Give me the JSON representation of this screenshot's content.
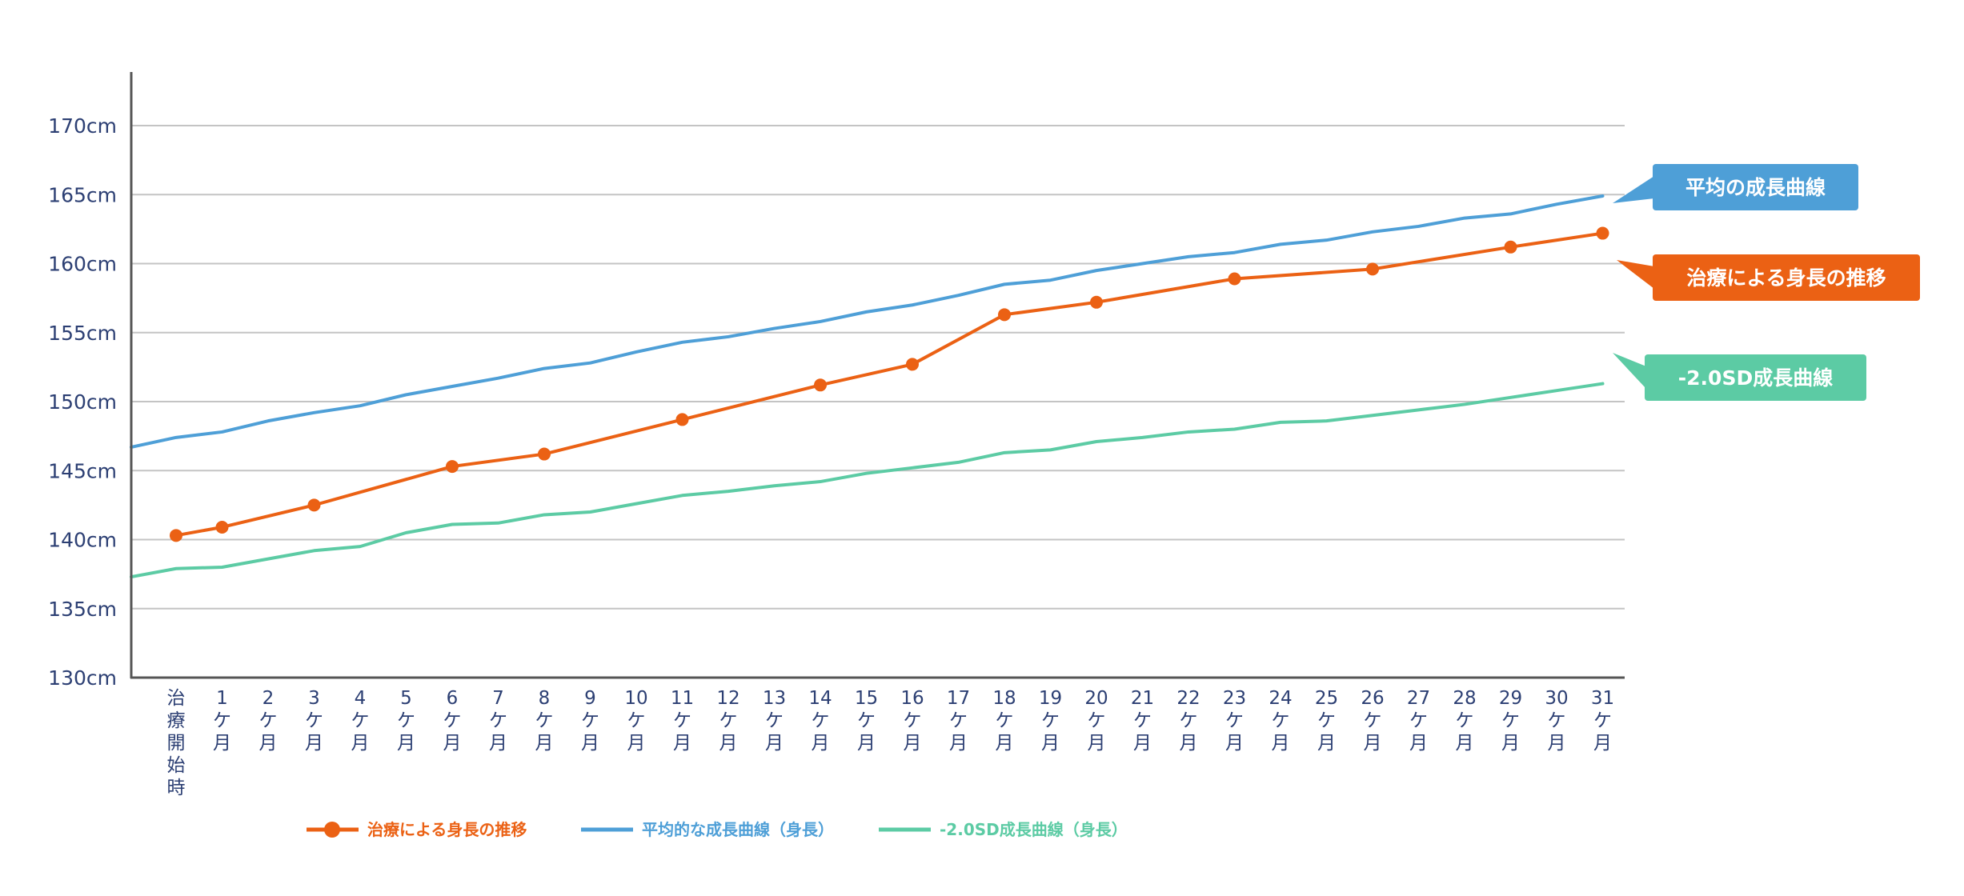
{
  "chart_data": {
    "type": "line",
    "x_categories": [
      "治療開始時",
      "1ケ月",
      "2ケ月",
      "3ケ月",
      "4ケ月",
      "5ケ月",
      "6ケ月",
      "7ケ月",
      "8ケ月",
      "9ケ月",
      "10ケ月",
      "11ケ月",
      "12ケ月",
      "13ケ月",
      "14ケ月",
      "15ケ月",
      "16ケ月",
      "17ケ月",
      "18ケ月",
      "19ケ月",
      "20ケ月",
      "21ケ月",
      "22ケ月",
      "23ケ月",
      "24ケ月",
      "25ケ月",
      "26ケ月",
      "27ケ月",
      "28ケ月",
      "29ケ月",
      "30ケ月",
      "31ケ月"
    ],
    "y_ticks": [
      "130cm",
      "135cm",
      "140cm",
      "145cm",
      "150cm",
      "155cm",
      "160cm",
      "165cm",
      "170cm"
    ],
    "ylim": [
      130,
      170
    ],
    "y_unit": "cm",
    "grid": true,
    "legend_position": "bottom",
    "series": [
      {
        "name": "治療による身長の推移",
        "callout": "治療による身長の推移",
        "color": "#eb6114",
        "markers": true,
        "points": [
          [
            0,
            140.3
          ],
          [
            1,
            140.9
          ],
          [
            3,
            142.5
          ],
          [
            6,
            145.3
          ],
          [
            8,
            146.2
          ],
          [
            11,
            148.7
          ],
          [
            14,
            151.2
          ],
          [
            16,
            152.7
          ],
          [
            18,
            156.3
          ],
          [
            20,
            157.2
          ],
          [
            23,
            158.9
          ],
          [
            26,
            159.6
          ],
          [
            29,
            161.2
          ],
          [
            31,
            162.2
          ]
        ]
      },
      {
        "name": "平均的な成長曲線（身長）",
        "callout": "平均の成長曲線",
        "color": "#4e9fd7",
        "markers": false,
        "points": [
          [
            -1,
            146.7
          ],
          [
            0,
            147.4
          ],
          [
            1,
            147.8
          ],
          [
            2,
            148.6
          ],
          [
            3,
            149.2
          ],
          [
            4,
            149.7
          ],
          [
            5,
            150.5
          ],
          [
            6,
            151.1
          ],
          [
            7,
            151.7
          ],
          [
            8,
            152.4
          ],
          [
            9,
            152.8
          ],
          [
            10,
            153.6
          ],
          [
            11,
            154.3
          ],
          [
            12,
            154.7
          ],
          [
            13,
            155.3
          ],
          [
            14,
            155.8
          ],
          [
            15,
            156.5
          ],
          [
            16,
            157
          ],
          [
            17,
            157.7
          ],
          [
            18,
            158.5
          ],
          [
            19,
            158.8
          ],
          [
            20,
            159.5
          ],
          [
            21,
            160
          ],
          [
            22,
            160.5
          ],
          [
            23,
            160.8
          ],
          [
            24,
            161.4
          ],
          [
            25,
            161.7
          ],
          [
            26,
            162.3
          ],
          [
            27,
            162.7
          ],
          [
            28,
            163.3
          ],
          [
            29,
            163.6
          ],
          [
            30,
            164.3
          ],
          [
            31,
            164.9
          ]
        ]
      },
      {
        "name": "-2.0SD成長曲線（身長）",
        "callout": "-2.0SD成長曲線",
        "color": "#5ccba4",
        "markers": false,
        "points": [
          [
            -1,
            137.3
          ],
          [
            0,
            137.9
          ],
          [
            1,
            138
          ],
          [
            2,
            138.6
          ],
          [
            3,
            139.2
          ],
          [
            4,
            139.5
          ],
          [
            5,
            140.5
          ],
          [
            6,
            141.1
          ],
          [
            7,
            141.2
          ],
          [
            8,
            141.8
          ],
          [
            9,
            142
          ],
          [
            10,
            142.6
          ],
          [
            11,
            143.2
          ],
          [
            12,
            143.5
          ],
          [
            13,
            143.9
          ],
          [
            14,
            144.2
          ],
          [
            15,
            144.8
          ],
          [
            16,
            145.2
          ],
          [
            17,
            145.6
          ],
          [
            18,
            146.3
          ],
          [
            19,
            146.5
          ],
          [
            20,
            147.1
          ],
          [
            21,
            147.4
          ],
          [
            22,
            147.8
          ],
          [
            23,
            148
          ],
          [
            24,
            148.5
          ],
          [
            25,
            148.6
          ],
          [
            26,
            149
          ],
          [
            27,
            149.4
          ],
          [
            28,
            149.8
          ],
          [
            29,
            150.3
          ],
          [
            30,
            150.8
          ],
          [
            31,
            151.3
          ]
        ]
      }
    ]
  }
}
